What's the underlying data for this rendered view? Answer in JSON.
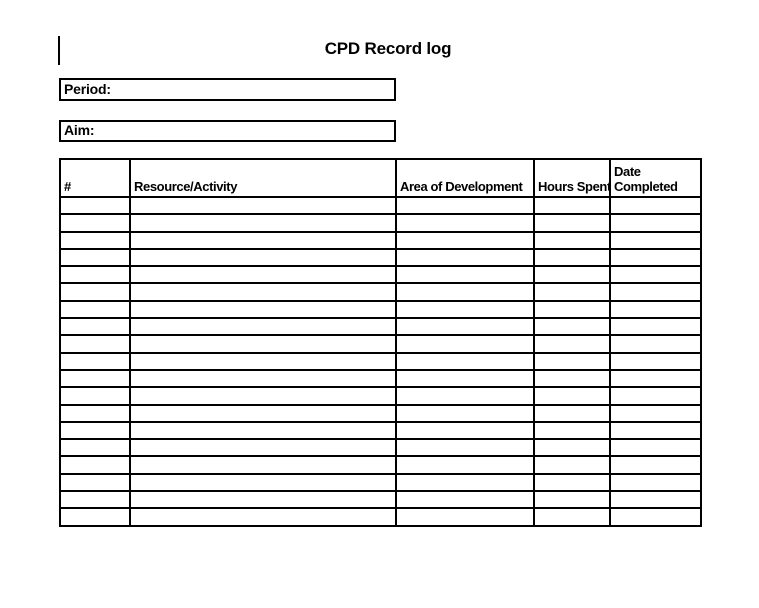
{
  "page": {
    "title": "CPD Record log"
  },
  "fields": {
    "period": {
      "label": "Period:",
      "value": ""
    },
    "aim": {
      "label": "Aim:",
      "value": ""
    }
  },
  "table": {
    "columns": [
      "#",
      "Resource/Activity",
      "Area of Development",
      "Hours Spent",
      "Date Completed"
    ],
    "rows": [
      [
        "",
        "",
        "",
        "",
        ""
      ],
      [
        "",
        "",
        "",
        "",
        ""
      ],
      [
        "",
        "",
        "",
        "",
        ""
      ],
      [
        "",
        "",
        "",
        "",
        ""
      ],
      [
        "",
        "",
        "",
        "",
        ""
      ],
      [
        "",
        "",
        "",
        "",
        ""
      ],
      [
        "",
        "",
        "",
        "",
        ""
      ],
      [
        "",
        "",
        "",
        "",
        ""
      ],
      [
        "",
        "",
        "",
        "",
        ""
      ],
      [
        "",
        "",
        "",
        "",
        ""
      ],
      [
        "",
        "",
        "",
        "",
        ""
      ],
      [
        "",
        "",
        "",
        "",
        ""
      ],
      [
        "",
        "",
        "",
        "",
        ""
      ],
      [
        "",
        "",
        "",
        "",
        ""
      ],
      [
        "",
        "",
        "",
        "",
        ""
      ],
      [
        "",
        "",
        "",
        "",
        ""
      ],
      [
        "",
        "",
        "",
        "",
        ""
      ],
      [
        "",
        "",
        "",
        "",
        ""
      ],
      [
        "",
        "",
        "",
        "",
        ""
      ]
    ]
  },
  "colors": {
    "text": "#000000",
    "border": "#000000",
    "background": "#ffffff"
  }
}
